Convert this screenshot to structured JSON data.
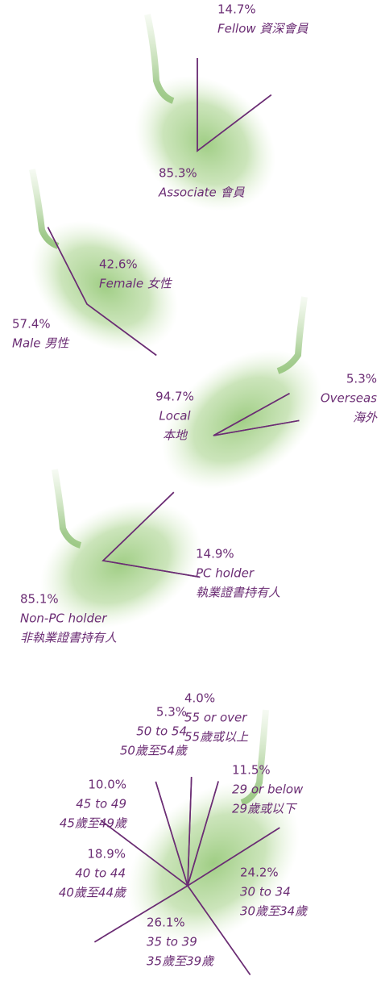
{
  "chart_data": [
    {
      "type": "pie",
      "color": "#6b2d74",
      "categories": [
        [
          "Fellow 資深會員"
        ],
        [
          "Associate 會員"
        ]
      ],
      "values": [
        14.7,
        85.3
      ],
      "value_labels": [
        "14.7%",
        "85.3%"
      ]
    },
    {
      "type": "pie",
      "color": "#6b2d74",
      "categories": [
        [
          "Female 女性"
        ],
        [
          "Male 男性"
        ]
      ],
      "values": [
        42.6,
        57.4
      ],
      "value_labels": [
        "42.6%",
        "57.4%"
      ]
    },
    {
      "type": "pie",
      "color": "#6b2d74",
      "categories": [
        [
          "Overseas",
          "海外"
        ],
        [
          "Local",
          "本地"
        ]
      ],
      "values": [
        5.3,
        94.7
      ],
      "value_labels": [
        "5.3%",
        "94.7%"
      ]
    },
    {
      "type": "pie",
      "color": "#6b2d74",
      "categories": [
        [
          "PC holder",
          "執業證書持有人"
        ],
        [
          "Non-PC holder",
          "非執業證書持有人"
        ]
      ],
      "values": [
        14.9,
        85.1
      ],
      "value_labels": [
        "14.9%",
        "85.1%"
      ]
    },
    {
      "type": "pie",
      "color": "#6b2d74",
      "categories": [
        [
          "55 or over",
          "55歲或以上"
        ],
        [
          "29 or below",
          "29歲或以下"
        ],
        [
          "30 to 34",
          "30歲至34歲"
        ],
        [
          "35 to 39",
          "35歲至39歲"
        ],
        [
          "40 to 44",
          "40歲至44歲"
        ],
        [
          "45 to 49",
          "45歲至49歲"
        ],
        [
          "50 to 54",
          "50歲至54歲"
        ]
      ],
      "values": [
        4.0,
        11.5,
        24.2,
        26.1,
        18.9,
        10.0,
        5.3
      ],
      "value_labels": [
        "4.0%",
        "11.5%",
        "24.2%",
        "26.1%",
        "18.9%",
        "10.0%",
        "5.3%"
      ]
    }
  ]
}
